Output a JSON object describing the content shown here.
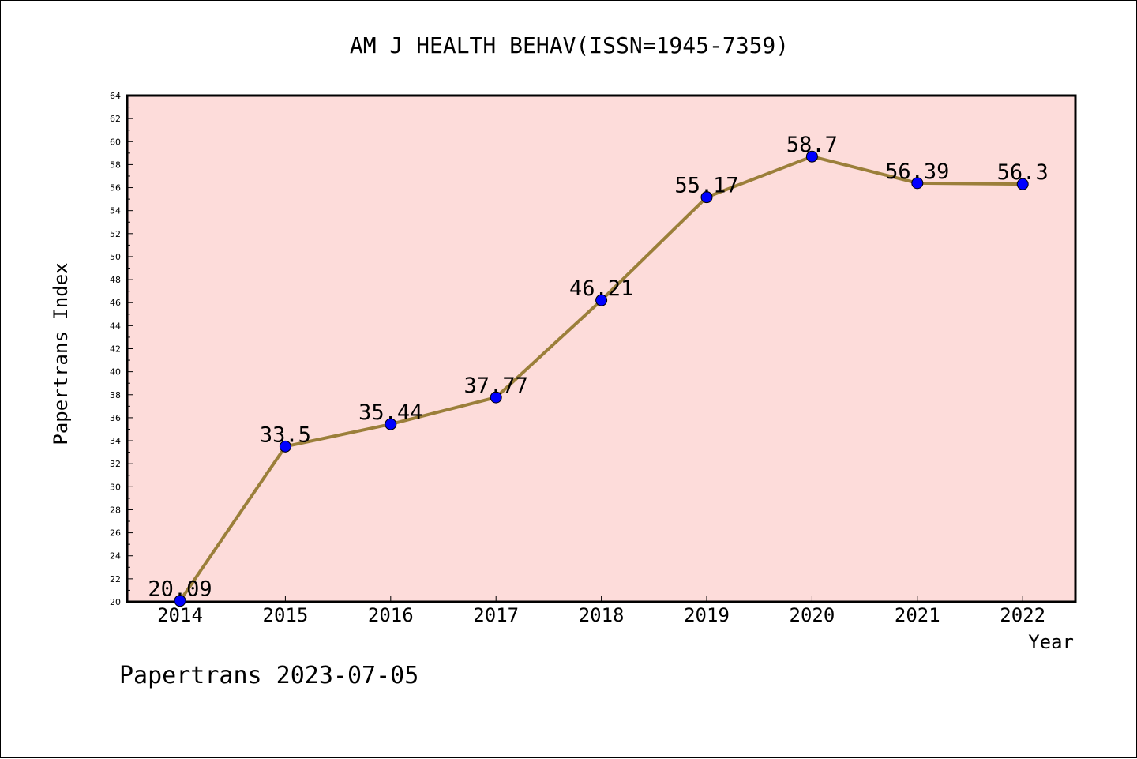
{
  "chart_data": {
    "type": "line",
    "title": "AM J HEALTH BEHAV(ISSN=1945-7359)",
    "xlabel": "Year",
    "ylabel": "Papertrans Index",
    "categories": [
      "2014",
      "2015",
      "2016",
      "2017",
      "2018",
      "2019",
      "2020",
      "2021",
      "2022"
    ],
    "series": [
      {
        "values": [
          20.09,
          33.5,
          35.44,
          37.77,
          46.21,
          55.17,
          58.7,
          56.39,
          56.3
        ],
        "labels": [
          "20.09",
          "33.5",
          "35.44",
          "37.77",
          "46.21",
          "55.17",
          "58.7",
          "56.39",
          "56.3"
        ],
        "line_color": "#9b7f3a",
        "marker_color": "#0000ff"
      }
    ],
    "ylim": [
      20,
      64
    ],
    "yticks": [
      20,
      22,
      24,
      26,
      28,
      30,
      32,
      34,
      36,
      38,
      40,
      42,
      44,
      46,
      48,
      50,
      52,
      54,
      56,
      58,
      60,
      62,
      64
    ],
    "plot_background": "#fddcda",
    "grid": false
  },
  "footer": "Papertrans 2023-07-05"
}
